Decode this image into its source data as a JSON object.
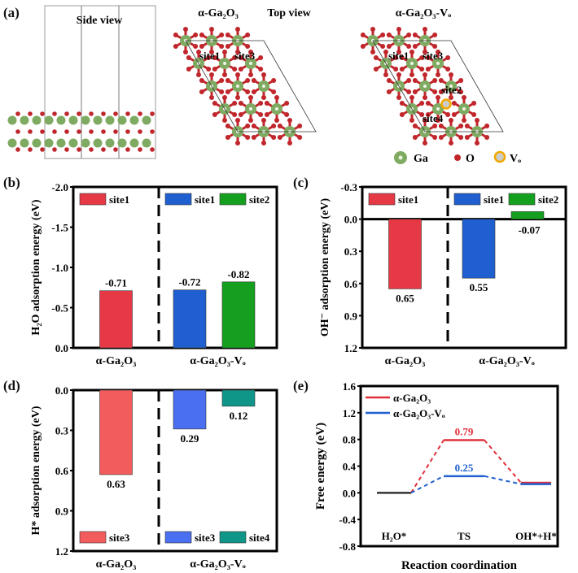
{
  "panel_a": {
    "label": "(a)",
    "side_view_title": "Side view",
    "top_view_title": "Top view",
    "model1_title": "α-Ga₂O₃",
    "model2_title": "α-Ga₂O₃-Vₒ",
    "model1_sites": [
      "site1",
      "site3"
    ],
    "model2_sites": [
      "site1",
      "site3",
      "site2",
      "site4"
    ],
    "legend": [
      {
        "label": "Ga",
        "color": "#7faa62"
      },
      {
        "label": "O",
        "color": "#c0262b"
      },
      {
        "label": "Vₒ",
        "color": "#f2a900"
      }
    ]
  },
  "chart_data": [
    {
      "id": "b",
      "panel_label": "(b)",
      "type": "bar",
      "title": "",
      "ylabel": "H₂O adsorption energy (eV)",
      "xlabel": "",
      "ylim": [
        0.0,
        -2.0
      ],
      "inverted_axis": true,
      "yticks": [
        "0.0",
        "-0.5",
        "-1.0",
        "-1.5",
        "-2.0"
      ],
      "ytick_values": [
        0.0,
        -0.5,
        -1.0,
        -1.5,
        -2.0
      ],
      "categories": [
        "α-Ga₂O₃",
        "α-Ga₂O₃-Vₒ"
      ],
      "bars": [
        {
          "group": 0,
          "legend": "site1",
          "value": -0.71,
          "label": "-0.71",
          "color": "#e63946"
        },
        {
          "group": 1,
          "legend": "site1",
          "value": -0.72,
          "label": "-0.72",
          "color": "#1f5fd0"
        },
        {
          "group": 1,
          "legend": "site2",
          "value": -0.82,
          "label": "-0.82",
          "color": "#14a01e"
        }
      ],
      "legend_position": "top"
    },
    {
      "id": "c",
      "panel_label": "(c)",
      "type": "bar",
      "title": "",
      "ylabel": "OH⁻ adsorption energy (eV)",
      "xlabel": "",
      "ylim": [
        -0.3,
        1.2
      ],
      "inverted_axis": true,
      "yticks": [
        "-0.3",
        "0.0",
        "0.3",
        "0.6",
        "0.9",
        "1.2"
      ],
      "ytick_values": [
        -0.3,
        0.0,
        0.3,
        0.6,
        0.9,
        1.2
      ],
      "categories": [
        "α-Ga₂O₃",
        "α-Ga₂O₃-Vₒ"
      ],
      "bars": [
        {
          "group": 0,
          "legend": "site1",
          "value": 0.65,
          "label": "0.65",
          "color": "#e63946"
        },
        {
          "group": 1,
          "legend": "site1",
          "value": 0.55,
          "label": "0.55",
          "color": "#1f5fd0"
        },
        {
          "group": 1,
          "legend": "site2",
          "value": -0.07,
          "label": "-0.07",
          "color": "#14a01e"
        }
      ],
      "legend_position": "top"
    },
    {
      "id": "d",
      "panel_label": "(d)",
      "type": "bar",
      "title": "",
      "ylabel": "H* adsorption energy (eV)",
      "xlabel": "",
      "ylim": [
        0.0,
        1.2
      ],
      "inverted_axis": true,
      "yticks": [
        "0.0",
        "0.3",
        "0.6",
        "0.9",
        "1.2"
      ],
      "ytick_values": [
        0.0,
        0.3,
        0.6,
        0.9,
        1.2
      ],
      "categories": [
        "α-Ga₂O₃",
        "α-Ga₂O₃-Vₒ"
      ],
      "bars": [
        {
          "group": 0,
          "legend": "site3",
          "value": 0.63,
          "label": "0.63",
          "color": "#f25c5c"
        },
        {
          "group": 1,
          "legend": "site3",
          "value": 0.29,
          "label": "0.29",
          "color": "#4a6ff0"
        },
        {
          "group": 1,
          "legend": "site4",
          "value": 0.12,
          "label": "0.12",
          "color": "#0f9688"
        }
      ],
      "legend_position": "bottom"
    },
    {
      "id": "e",
      "panel_label": "(e)",
      "type": "line",
      "title": "",
      "ylabel": "Free energy (eV)",
      "xlabel": "Reaction coordination",
      "ylim": [
        -0.8,
        1.6
      ],
      "yticks": [
        "-0.8",
        "-0.4",
        "0.0",
        "0.4",
        "0.8",
        "1.2",
        "1.6"
      ],
      "ytick_values": [
        -0.8,
        -0.4,
        0.0,
        0.4,
        0.8,
        1.2,
        1.6
      ],
      "categories": [
        "H₂O*",
        "TS",
        "OH*+H*"
      ],
      "series": [
        {
          "name": "α-Ga₂O₃",
          "values": [
            0.0,
            0.79,
            0.15
          ],
          "labels": [
            "",
            "0.79",
            ""
          ],
          "color": "#e0303a"
        },
        {
          "name": "α-Ga₂O₃-Vₒ",
          "values": [
            0.0,
            0.25,
            0.13
          ],
          "labels": [
            "",
            "0.25",
            ""
          ],
          "color": "#1f5fd0"
        }
      ],
      "initial_state_color": "#333333",
      "legend_position": "top-left"
    }
  ]
}
